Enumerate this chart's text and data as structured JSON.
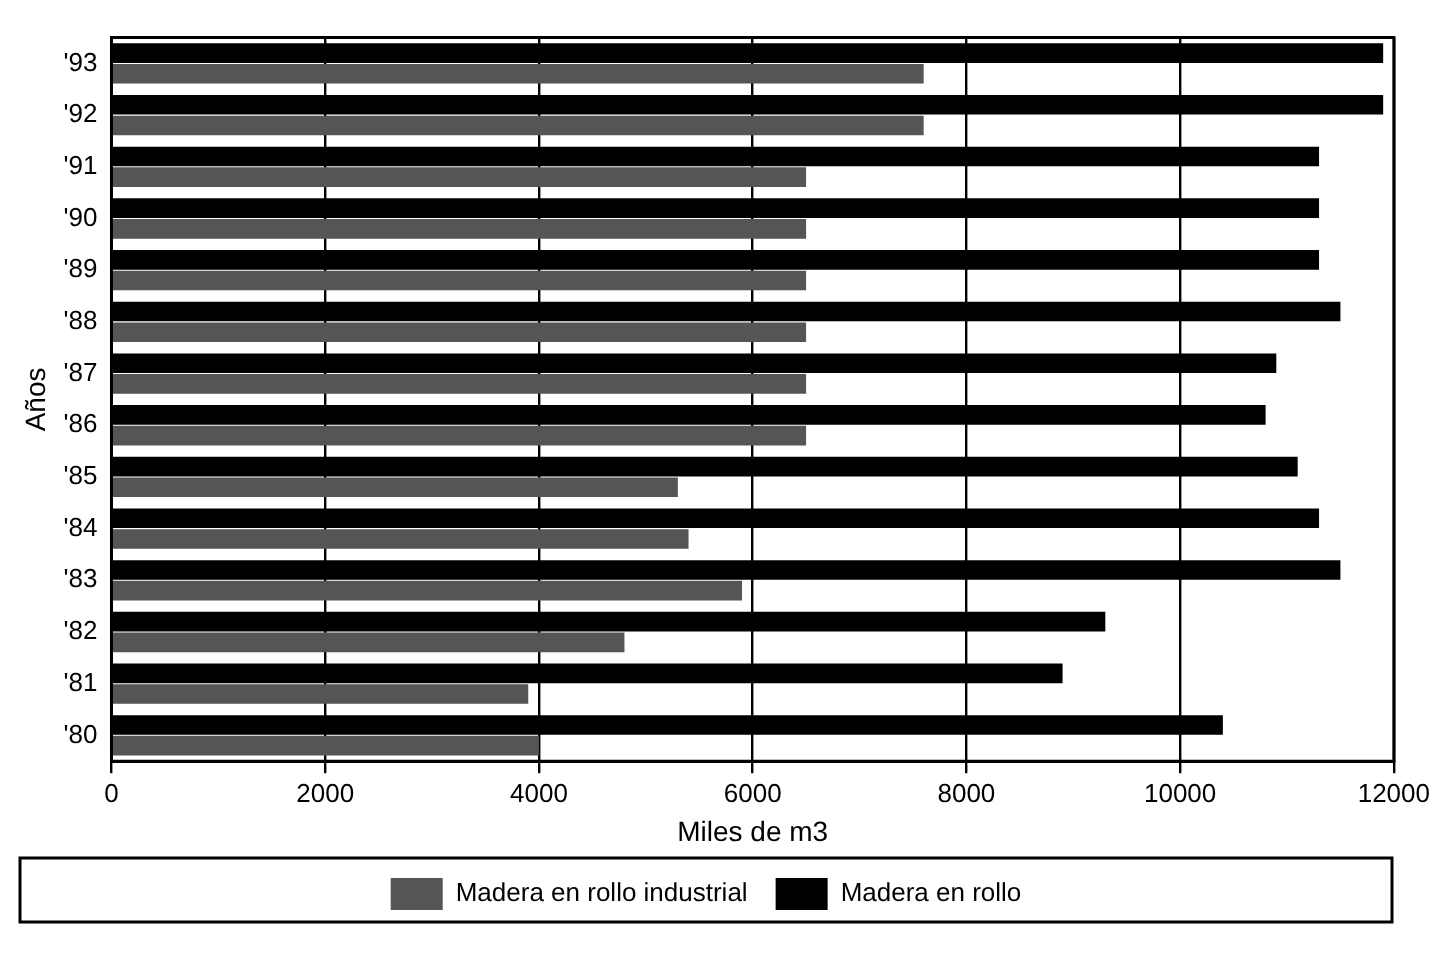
{
  "chart_data": {
    "type": "bar",
    "orientation": "horizontal",
    "xlabel": "Miles de m3",
    "ylabel": "Años",
    "categories": [
      "'93",
      "'92",
      "'91",
      "'90",
      "'89",
      "'88",
      "'87",
      "'86",
      "'85",
      "'84",
      "'83",
      "'82",
      "'81",
      "'80"
    ],
    "series": [
      {
        "name": "Madera en rollo",
        "color": "#000000",
        "values": [
          11900,
          11900,
          11300,
          11300,
          11300,
          11500,
          10900,
          10800,
          11100,
          11300,
          11500,
          9300,
          8900,
          10400
        ]
      },
      {
        "name": "Madera en rollo industrial",
        "color": "#555555",
        "values": [
          7600,
          7600,
          6500,
          6500,
          6500,
          6500,
          6500,
          6500,
          5300,
          5400,
          5900,
          4800,
          3900,
          4000
        ]
      }
    ],
    "xlim": [
      0,
      12000
    ],
    "xticks": [
      0,
      2000,
      4000,
      6000,
      8000,
      10000,
      12000
    ],
    "grid": "x",
    "legend": "bottom"
  }
}
